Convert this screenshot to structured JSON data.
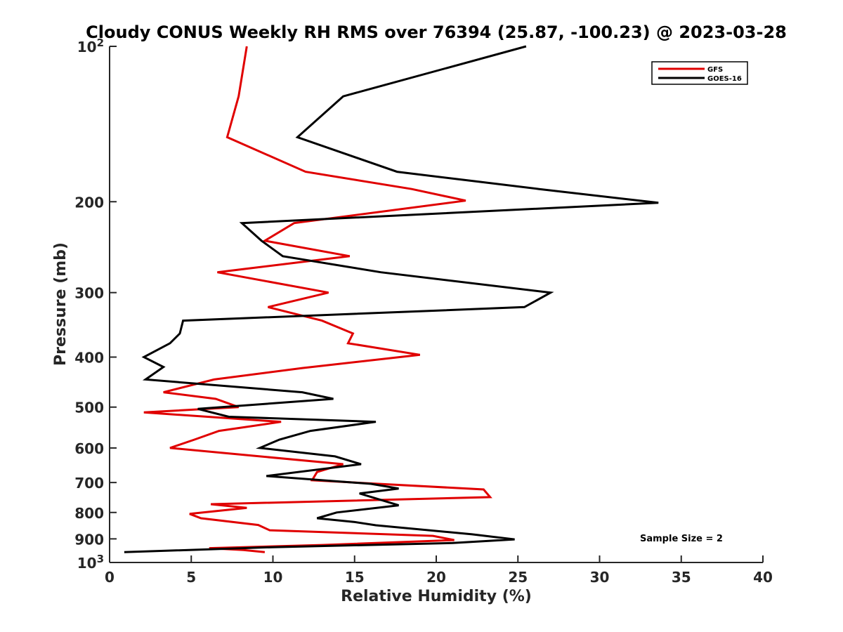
{
  "chart_data": {
    "type": "line",
    "title": "Cloudy CONUS Weekly RH RMS over 76394 (25.87, -100.23) @ 2023-03-28",
    "xlabel": "Relative Humidity (%)",
    "ylabel": "Pressure (mb)",
    "xlim": [
      0,
      40
    ],
    "ylim": [
      100,
      1000
    ],
    "yscale": "log",
    "y_reversed": true,
    "x_ticks": [
      0,
      5,
      10,
      15,
      20,
      25,
      30,
      35,
      40
    ],
    "y_ticks": [
      {
        "value": 100,
        "label": "10",
        "sup": "2"
      },
      {
        "value": 200,
        "label": "200"
      },
      {
        "value": 300,
        "label": "300"
      },
      {
        "value": 400,
        "label": "400"
      },
      {
        "value": 500,
        "label": "500"
      },
      {
        "value": 600,
        "label": "600"
      },
      {
        "value": 700,
        "label": "700"
      },
      {
        "value": 800,
        "label": "800"
      },
      {
        "value": 900,
        "label": "900"
      },
      {
        "value": 1000,
        "label": "10",
        "sup": "3"
      }
    ],
    "grid": false,
    "legend_position": "top-right",
    "series": [
      {
        "name": "GFS",
        "color": "#e00000",
        "points": [
          [
            8.4,
            100
          ],
          [
            7.9,
            125
          ],
          [
            7.2,
            150
          ],
          [
            12.0,
            175
          ],
          [
            18.5,
            189
          ],
          [
            21.8,
            199
          ],
          [
            11.3,
            220
          ],
          [
            9.5,
            238
          ],
          [
            14.7,
            255
          ],
          [
            6.6,
            274
          ],
          [
            13.4,
            300
          ],
          [
            9.7,
            320
          ],
          [
            13.0,
            340
          ],
          [
            14.9,
            360
          ],
          [
            14.6,
            376
          ],
          [
            19.0,
            396
          ],
          [
            11.8,
            420
          ],
          [
            6.4,
            442
          ],
          [
            3.3,
            468
          ],
          [
            6.5,
            482
          ],
          [
            7.9,
            500
          ],
          [
            2.1,
            512
          ],
          [
            10.5,
            534
          ],
          [
            6.7,
            556
          ],
          [
            5.2,
            578
          ],
          [
            3.7,
            600
          ],
          [
            9.2,
            623
          ],
          [
            14.3,
            645
          ],
          [
            12.7,
            668
          ],
          [
            12.4,
            693
          ],
          [
            22.9,
            722
          ],
          [
            23.3,
            747
          ],
          [
            6.2,
            771
          ],
          [
            8.4,
            784
          ],
          [
            4.9,
            805
          ],
          [
            5.6,
            821
          ],
          [
            9.1,
            846
          ],
          [
            9.8,
            866
          ],
          [
            19.8,
            888
          ],
          [
            21.1,
            905
          ],
          [
            13.0,
            925
          ],
          [
            6.1,
            938
          ],
          [
            8.2,
            946
          ],
          [
            9.5,
            955
          ]
        ]
      },
      {
        "name": "GOES-16",
        "color": "#000000",
        "points": [
          [
            25.5,
            100
          ],
          [
            14.3,
            125
          ],
          [
            11.5,
            150
          ],
          [
            17.6,
            175
          ],
          [
            26.3,
            189
          ],
          [
            33.6,
            201
          ],
          [
            8.1,
            220
          ],
          [
            9.3,
            238
          ],
          [
            10.6,
            255
          ],
          [
            16.6,
            274
          ],
          [
            27.0,
            300
          ],
          [
            25.4,
            320
          ],
          [
            4.5,
            340
          ],
          [
            4.3,
            360
          ],
          [
            3.7,
            376
          ],
          [
            2.1,
            400
          ],
          [
            3.3,
            418
          ],
          [
            2.2,
            442
          ],
          [
            11.8,
            468
          ],
          [
            13.7,
            482
          ],
          [
            5.4,
            504
          ],
          [
            7.3,
            522
          ],
          [
            16.3,
            534
          ],
          [
            12.3,
            556
          ],
          [
            10.4,
            578
          ],
          [
            9.2,
            600
          ],
          [
            13.8,
            623
          ],
          [
            15.4,
            645
          ],
          [
            9.6,
            680
          ],
          [
            16.0,
            704
          ],
          [
            17.7,
            719
          ],
          [
            15.3,
            735
          ],
          [
            17.7,
            775
          ],
          [
            13.9,
            800
          ],
          [
            12.7,
            821
          ],
          [
            15.0,
            835
          ],
          [
            16.3,
            847
          ],
          [
            22.2,
            882
          ],
          [
            24.8,
            902
          ],
          [
            21.0,
            917
          ],
          [
            10.0,
            934
          ],
          [
            0.9,
            955
          ]
        ]
      }
    ],
    "annotation": "Sample Size = 2"
  }
}
